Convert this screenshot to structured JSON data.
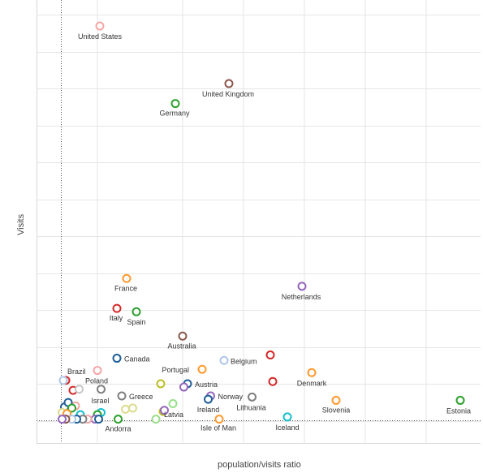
{
  "chart_data": {
    "type": "scatter",
    "title": "",
    "xlabel": "population/visits ratio",
    "ylabel": "Visits",
    "grid": true,
    "legend": "none",
    "xlim": [
      -1,
      35
    ],
    "ylim": [
      -1,
      37
    ],
    "reference_lines": {
      "x": 0,
      "y": 0
    },
    "points": [
      {
        "label": "United States",
        "x": 3.2,
        "y": 35.6,
        "color": "#f4a6a6"
      },
      {
        "label": "United Kingdom",
        "x": 13.8,
        "y": 30.4,
        "color": "#8c564b"
      },
      {
        "label": "Germany",
        "x": 9.4,
        "y": 28.6,
        "color": "#2ca02c"
      },
      {
        "label": "Netherlands",
        "x": 19.8,
        "y": 12.1,
        "color": "#9467bd"
      },
      {
        "label": "France",
        "x": 5.4,
        "y": 12.8,
        "color": "#ff9a2e"
      },
      {
        "label": "Italy",
        "x": 4.6,
        "y": 10.1,
        "color": "#d62728"
      },
      {
        "label": "Spain",
        "x": 6.2,
        "y": 9.8,
        "color": "#2ca02c"
      },
      {
        "label": "Australia",
        "x": 10.0,
        "y": 7.6,
        "color": "#8c564b"
      },
      {
        "label": "Canada",
        "x": 4.6,
        "y": 5.6,
        "color": "#1f5f99"
      },
      {
        "label": "Belgium",
        "x": 13.4,
        "y": 5.4,
        "color": "#aec7e8"
      },
      {
        "label": "Portugal",
        "x": 11.6,
        "y": 4.6,
        "color": "#ff9a2e"
      },
      {
        "label": "Brazil",
        "x": 0.4,
        "y": 3.6,
        "color": "#d62728"
      },
      {
        "label": "Poland",
        "x": 3.0,
        "y": 4.5,
        "color": "#f4a6a6"
      },
      {
        "label": "Denmark",
        "x": 20.6,
        "y": 4.3,
        "color": "#ff9a2e"
      },
      {
        "label": "Austria",
        "x": 10.4,
        "y": 3.3,
        "color": "#1f5f99"
      },
      {
        "label": "Greece",
        "x": 5.0,
        "y": 2.2,
        "color": "#7f7f7f"
      },
      {
        "label": "Israel",
        "x": 3.3,
        "y": 2.8,
        "color": "#7f7f7f"
      },
      {
        "label": "Norway",
        "x": 12.3,
        "y": 2.2,
        "color": "#9467bd"
      },
      {
        "label": "Ireland",
        "x": 12.1,
        "y": 1.9,
        "color": "#1f5f99"
      },
      {
        "label": "Lithuania",
        "x": 15.7,
        "y": 2.1,
        "color": "#7f7f7f"
      },
      {
        "label": "Slovenia",
        "x": 22.6,
        "y": 1.8,
        "color": "#ff9a2e"
      },
      {
        "label": "Estonia",
        "x": 32.8,
        "y": 1.8,
        "color": "#2ca02c"
      },
      {
        "label": "Latvia",
        "x": 8.4,
        "y": 0.8,
        "color": "#bcbd22"
      },
      {
        "label": "Andorra",
        "x": 4.7,
        "y": 0.1,
        "color": "#2ca02c"
      },
      {
        "label": "Isle of Man",
        "x": 13.0,
        "y": 0.1,
        "color": "#ff9a2e"
      },
      {
        "label": "Iceland",
        "x": 18.6,
        "y": 0.3,
        "color": "#17becf"
      },
      {
        "label": "",
        "x": 17.2,
        "y": 5.9,
        "color": "#d62728"
      },
      {
        "label": "",
        "x": 17.4,
        "y": 3.5,
        "color": "#d62728"
      },
      {
        "label": "",
        "x": 8.2,
        "y": 3.3,
        "color": "#bcbd22"
      },
      {
        "label": "",
        "x": 10.1,
        "y": 3.0,
        "color": "#9467bd"
      },
      {
        "label": "",
        "x": 9.2,
        "y": 1.5,
        "color": "#98df8a"
      },
      {
        "label": "",
        "x": 5.3,
        "y": 1.0,
        "color": "#dbdb8d"
      },
      {
        "label": "",
        "x": 5.9,
        "y": 1.1,
        "color": "#dbdb8d"
      },
      {
        "label": "",
        "x": 8.5,
        "y": 0.9,
        "color": "#9467bd"
      },
      {
        "label": "",
        "x": 7.8,
        "y": 0.1,
        "color": "#98df8a"
      },
      {
        "label": "",
        "x": 1.0,
        "y": 2.7,
        "color": "#d62728"
      },
      {
        "label": "",
        "x": 1.5,
        "y": 2.8,
        "color": "#c7c7c7"
      },
      {
        "label": "",
        "x": 0.2,
        "y": 3.6,
        "color": "#aec7e8"
      },
      {
        "label": "",
        "x": 1.2,
        "y": 1.3,
        "color": "#f4a6a6"
      },
      {
        "label": "",
        "x": 0.3,
        "y": 1.2,
        "color": "#1f5f99"
      },
      {
        "label": "",
        "x": 0.6,
        "y": 1.6,
        "color": "#1f5f99"
      },
      {
        "label": "",
        "x": 0.9,
        "y": 1.1,
        "color": "#2ca02c"
      },
      {
        "label": "",
        "x": 0.1,
        "y": 0.7,
        "color": "#dbdb8d"
      },
      {
        "label": "",
        "x": 0.5,
        "y": 0.6,
        "color": "#ff9a2e"
      },
      {
        "label": "",
        "x": 1.6,
        "y": 0.5,
        "color": "#17becf"
      },
      {
        "label": "",
        "x": 3.3,
        "y": 0.7,
        "color": "#17becf"
      },
      {
        "label": "",
        "x": 3.0,
        "y": 0.5,
        "color": "#2ca02c"
      },
      {
        "label": "",
        "x": 2.8,
        "y": 0.1,
        "color": "#9467bd"
      },
      {
        "label": "",
        "x": 3.1,
        "y": 0.1,
        "color": "#1f5f99"
      },
      {
        "label": "",
        "x": 2.2,
        "y": 0.1,
        "color": "#f4a6a6"
      },
      {
        "label": "",
        "x": 1.8,
        "y": 0.1,
        "color": "#7f7f7f"
      },
      {
        "label": "",
        "x": 1.3,
        "y": 0.1,
        "color": "#1f5f99"
      },
      {
        "label": "",
        "x": 0.9,
        "y": 0.1,
        "color": "#aec7e8"
      },
      {
        "label": "",
        "x": 0.4,
        "y": 0.1,
        "color": "#8c564b"
      },
      {
        "label": "",
        "x": 0.1,
        "y": 0.1,
        "color": "#9467bd"
      }
    ]
  }
}
